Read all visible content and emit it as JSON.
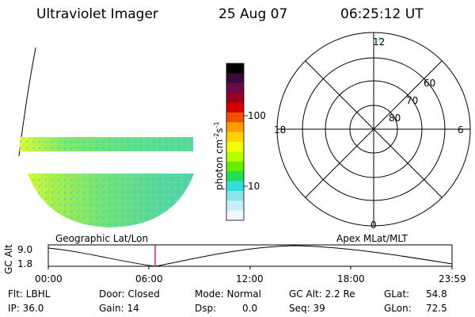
{
  "header": {
    "instrument": "Ultraviolet Imager",
    "date": "25 Aug 07",
    "time": "06:25:12 UT"
  },
  "colorbar": {
    "unit_label": "photon cm",
    "unit_exp1": "-2",
    "unit_s": "s",
    "unit_exp2": "-1",
    "ticks": [
      "100",
      "10"
    ],
    "colors": [
      "#000000",
      "#3a0a3a",
      "#6a0a4a",
      "#9a0020",
      "#d40000",
      "#f05000",
      "#ff9a00",
      "#ffd200",
      "#f2ff00",
      "#b8ff00",
      "#66ee00",
      "#22dd55",
      "#33dddd",
      "#88e6ea",
      "#c8f0f6",
      "#eef8fc"
    ]
  },
  "polar_plot": {
    "lat_labels": [
      "60",
      "70",
      "80"
    ],
    "mlt_labels": {
      "top": "12",
      "left": "18",
      "right": "6",
      "bottom": "0"
    }
  },
  "timeline": {
    "left_label": "Geographic Lat/Lon",
    "right_label": "Apex MLat/MLT",
    "axis_title": "GC Alt",
    "y_ticks": [
      "9.0",
      "1.8"
    ],
    "x_ticks": [
      "00:00",
      "06:00",
      "12:00",
      "18:00",
      "23:59"
    ],
    "marker_color": "#ff0000"
  },
  "status": {
    "flt": "Flt: LBHL",
    "ip": "IP: 36.0",
    "door": "Door: Closed",
    "gain": "Gain: 14",
    "mode": "Mode: Normal",
    "dsp": "Dsp:",
    "dsp_value": "0.0",
    "gc_alt": "GC Alt: 2.2 Re",
    "seq": "Seq: 39",
    "glat": "GLat:",
    "glat_value": "54.8",
    "glon": "GLon:",
    "glon_value": "72.5"
  }
}
